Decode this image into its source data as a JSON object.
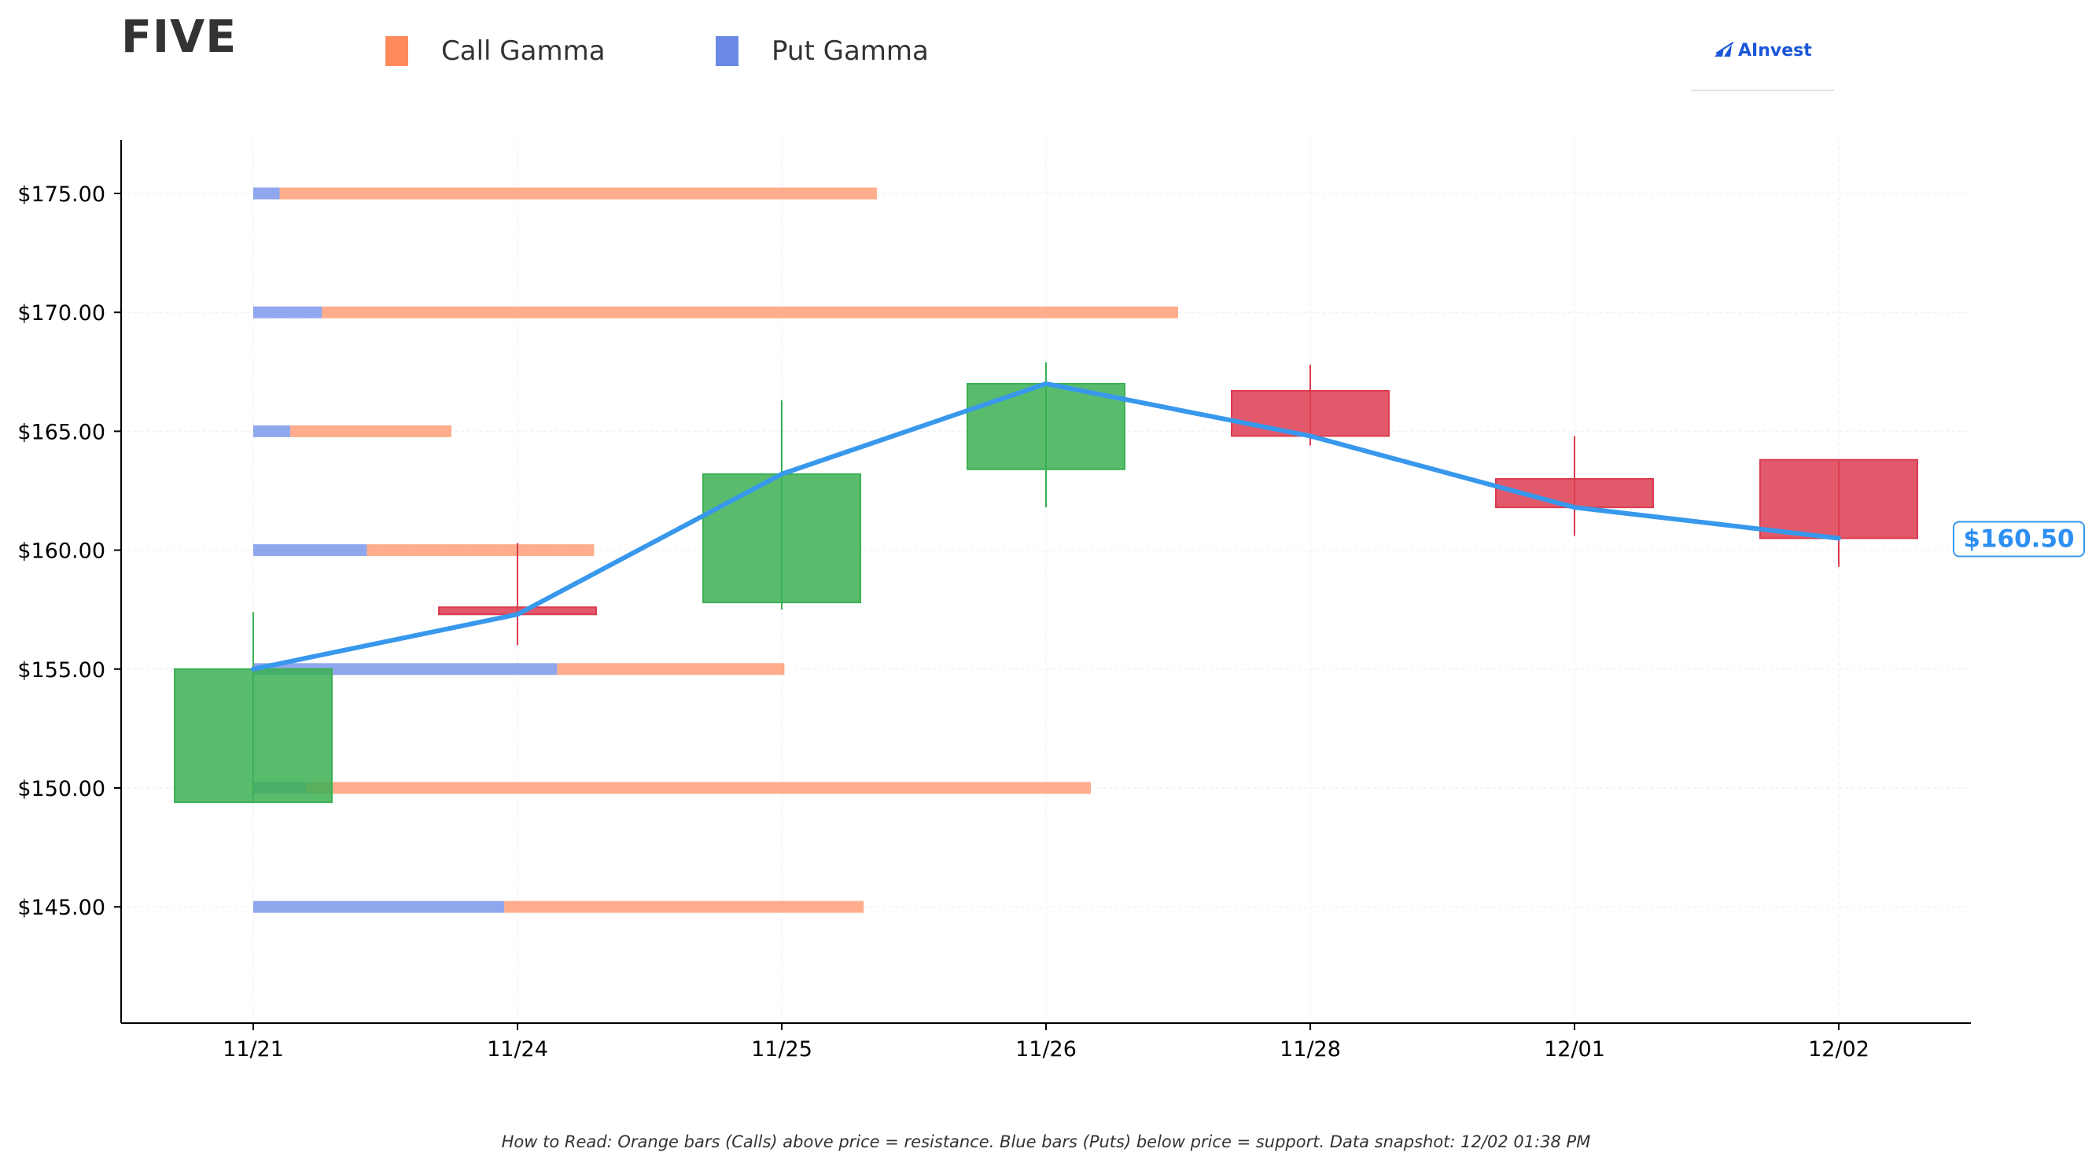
{
  "header": {
    "ticker": "FIVE",
    "brand": "AInvest"
  },
  "legend": [
    {
      "label": "Call Gamma",
      "color": "#ff8a5b"
    },
    {
      "label": "Put Gamma",
      "color": "#6a8ae6"
    }
  ],
  "footnote": "How to Read: Orange bars (Calls) above price = resistance. Blue bars (Puts) below price = support. Data snapshot: 12/02 01:38 PM",
  "colors": {
    "up": "#3cb054",
    "down": "#dc3c50",
    "trend": "#3898ec",
    "call": "#ff8a5b",
    "put": "#6a8ae6"
  },
  "chart_data": {
    "type": "candlestick",
    "title": "FIVE",
    "categories": [
      "11/21",
      "11/24",
      "11/25",
      "11/26",
      "11/28",
      "12/01",
      "12/02"
    ],
    "ylim": [
      138.0,
      175.0
    ],
    "y_ticks": [
      145,
      150,
      155,
      160,
      165,
      170,
      175
    ],
    "y_tick_labels": [
      "$145.00",
      "$150.00",
      "$155.00",
      "$160.00",
      "$165.00",
      "$170.00",
      "$175.00"
    ],
    "candles": [
      {
        "date": "11/21",
        "open": 149.4,
        "high": 157.4,
        "low": 149.4,
        "close": 155.0
      },
      {
        "date": "11/24",
        "open": 157.6,
        "high": 160.3,
        "low": 156.0,
        "close": 157.3
      },
      {
        "date": "11/25",
        "open": 157.8,
        "high": 166.3,
        "low": 157.5,
        "close": 163.2
      },
      {
        "date": "11/26",
        "open": 163.4,
        "high": 167.9,
        "low": 161.8,
        "close": 167.0
      },
      {
        "date": "11/28",
        "open": 166.7,
        "high": 167.8,
        "low": 164.4,
        "close": 164.8
      },
      {
        "date": "12/01",
        "open": 163.0,
        "high": 164.8,
        "low": 160.6,
        "close": 161.8
      },
      {
        "date": "12/02",
        "open": 163.8,
        "high": 163.8,
        "low": 159.3,
        "close": 160.5
      }
    ],
    "close_line": [
      155.0,
      157.3,
      163.2,
      167.0,
      164.8,
      161.8,
      160.5
    ],
    "last_price_label": "$160.50",
    "gamma": {
      "strikes": [
        175,
        170,
        165,
        160,
        155,
        150,
        145
      ],
      "put": [
        0.1,
        0.26,
        0.14,
        0.43,
        1.15,
        0.2,
        0.95
      ],
      "call": [
        2.26,
        3.24,
        0.61,
        0.86,
        0.86,
        2.97,
        1.36
      ],
      "note": "relative bar lengths in x-axis category units"
    },
    "grid": true,
    "legend_position": "top-left"
  }
}
